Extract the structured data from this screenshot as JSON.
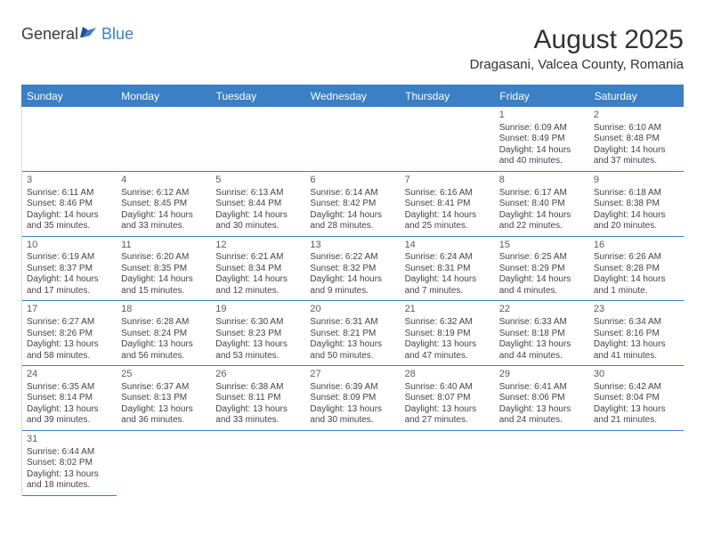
{
  "brand": {
    "general": "General",
    "blue": "Blue"
  },
  "title": "August 2025",
  "subtitle": "Dragasani, Valcea County, Romania",
  "colors": {
    "header_bg": "#3b7fc4",
    "header_text": "#ffffff",
    "border": "#3b7fc4",
    "text": "#333333"
  },
  "day_names": [
    "Sunday",
    "Monday",
    "Tuesday",
    "Wednesday",
    "Thursday",
    "Friday",
    "Saturday"
  ],
  "weeks": [
    [
      null,
      null,
      null,
      null,
      null,
      {
        "n": "1",
        "sunrise": "Sunrise: 6:09 AM",
        "sunset": "Sunset: 8:49 PM",
        "d1": "Daylight: 14 hours",
        "d2": "and 40 minutes."
      },
      {
        "n": "2",
        "sunrise": "Sunrise: 6:10 AM",
        "sunset": "Sunset: 8:48 PM",
        "d1": "Daylight: 14 hours",
        "d2": "and 37 minutes."
      }
    ],
    [
      {
        "n": "3",
        "sunrise": "Sunrise: 6:11 AM",
        "sunset": "Sunset: 8:46 PM",
        "d1": "Daylight: 14 hours",
        "d2": "and 35 minutes."
      },
      {
        "n": "4",
        "sunrise": "Sunrise: 6:12 AM",
        "sunset": "Sunset: 8:45 PM",
        "d1": "Daylight: 14 hours",
        "d2": "and 33 minutes."
      },
      {
        "n": "5",
        "sunrise": "Sunrise: 6:13 AM",
        "sunset": "Sunset: 8:44 PM",
        "d1": "Daylight: 14 hours",
        "d2": "and 30 minutes."
      },
      {
        "n": "6",
        "sunrise": "Sunrise: 6:14 AM",
        "sunset": "Sunset: 8:42 PM",
        "d1": "Daylight: 14 hours",
        "d2": "and 28 minutes."
      },
      {
        "n": "7",
        "sunrise": "Sunrise: 6:16 AM",
        "sunset": "Sunset: 8:41 PM",
        "d1": "Daylight: 14 hours",
        "d2": "and 25 minutes."
      },
      {
        "n": "8",
        "sunrise": "Sunrise: 6:17 AM",
        "sunset": "Sunset: 8:40 PM",
        "d1": "Daylight: 14 hours",
        "d2": "and 22 minutes."
      },
      {
        "n": "9",
        "sunrise": "Sunrise: 6:18 AM",
        "sunset": "Sunset: 8:38 PM",
        "d1": "Daylight: 14 hours",
        "d2": "and 20 minutes."
      }
    ],
    [
      {
        "n": "10",
        "sunrise": "Sunrise: 6:19 AM",
        "sunset": "Sunset: 8:37 PM",
        "d1": "Daylight: 14 hours",
        "d2": "and 17 minutes."
      },
      {
        "n": "11",
        "sunrise": "Sunrise: 6:20 AM",
        "sunset": "Sunset: 8:35 PM",
        "d1": "Daylight: 14 hours",
        "d2": "and 15 minutes."
      },
      {
        "n": "12",
        "sunrise": "Sunrise: 6:21 AM",
        "sunset": "Sunset: 8:34 PM",
        "d1": "Daylight: 14 hours",
        "d2": "and 12 minutes."
      },
      {
        "n": "13",
        "sunrise": "Sunrise: 6:22 AM",
        "sunset": "Sunset: 8:32 PM",
        "d1": "Daylight: 14 hours",
        "d2": "and 9 minutes."
      },
      {
        "n": "14",
        "sunrise": "Sunrise: 6:24 AM",
        "sunset": "Sunset: 8:31 PM",
        "d1": "Daylight: 14 hours",
        "d2": "and 7 minutes."
      },
      {
        "n": "15",
        "sunrise": "Sunrise: 6:25 AM",
        "sunset": "Sunset: 8:29 PM",
        "d1": "Daylight: 14 hours",
        "d2": "and 4 minutes."
      },
      {
        "n": "16",
        "sunrise": "Sunrise: 6:26 AM",
        "sunset": "Sunset: 8:28 PM",
        "d1": "Daylight: 14 hours",
        "d2": "and 1 minute."
      }
    ],
    [
      {
        "n": "17",
        "sunrise": "Sunrise: 6:27 AM",
        "sunset": "Sunset: 8:26 PM",
        "d1": "Daylight: 13 hours",
        "d2": "and 58 minutes."
      },
      {
        "n": "18",
        "sunrise": "Sunrise: 6:28 AM",
        "sunset": "Sunset: 8:24 PM",
        "d1": "Daylight: 13 hours",
        "d2": "and 56 minutes."
      },
      {
        "n": "19",
        "sunrise": "Sunrise: 6:30 AM",
        "sunset": "Sunset: 8:23 PM",
        "d1": "Daylight: 13 hours",
        "d2": "and 53 minutes."
      },
      {
        "n": "20",
        "sunrise": "Sunrise: 6:31 AM",
        "sunset": "Sunset: 8:21 PM",
        "d1": "Daylight: 13 hours",
        "d2": "and 50 minutes."
      },
      {
        "n": "21",
        "sunrise": "Sunrise: 6:32 AM",
        "sunset": "Sunset: 8:19 PM",
        "d1": "Daylight: 13 hours",
        "d2": "and 47 minutes."
      },
      {
        "n": "22",
        "sunrise": "Sunrise: 6:33 AM",
        "sunset": "Sunset: 8:18 PM",
        "d1": "Daylight: 13 hours",
        "d2": "and 44 minutes."
      },
      {
        "n": "23",
        "sunrise": "Sunrise: 6:34 AM",
        "sunset": "Sunset: 8:16 PM",
        "d1": "Daylight: 13 hours",
        "d2": "and 41 minutes."
      }
    ],
    [
      {
        "n": "24",
        "sunrise": "Sunrise: 6:35 AM",
        "sunset": "Sunset: 8:14 PM",
        "d1": "Daylight: 13 hours",
        "d2": "and 39 minutes."
      },
      {
        "n": "25",
        "sunrise": "Sunrise: 6:37 AM",
        "sunset": "Sunset: 8:13 PM",
        "d1": "Daylight: 13 hours",
        "d2": "and 36 minutes."
      },
      {
        "n": "26",
        "sunrise": "Sunrise: 6:38 AM",
        "sunset": "Sunset: 8:11 PM",
        "d1": "Daylight: 13 hours",
        "d2": "and 33 minutes."
      },
      {
        "n": "27",
        "sunrise": "Sunrise: 6:39 AM",
        "sunset": "Sunset: 8:09 PM",
        "d1": "Daylight: 13 hours",
        "d2": "and 30 minutes."
      },
      {
        "n": "28",
        "sunrise": "Sunrise: 6:40 AM",
        "sunset": "Sunset: 8:07 PM",
        "d1": "Daylight: 13 hours",
        "d2": "and 27 minutes."
      },
      {
        "n": "29",
        "sunrise": "Sunrise: 6:41 AM",
        "sunset": "Sunset: 8:06 PM",
        "d1": "Daylight: 13 hours",
        "d2": "and 24 minutes."
      },
      {
        "n": "30",
        "sunrise": "Sunrise: 6:42 AM",
        "sunset": "Sunset: 8:04 PM",
        "d1": "Daylight: 13 hours",
        "d2": "and 21 minutes."
      }
    ],
    [
      {
        "n": "31",
        "sunrise": "Sunrise: 6:44 AM",
        "sunset": "Sunset: 8:02 PM",
        "d1": "Daylight: 13 hours",
        "d2": "and 18 minutes."
      },
      null,
      null,
      null,
      null,
      null,
      null
    ]
  ]
}
